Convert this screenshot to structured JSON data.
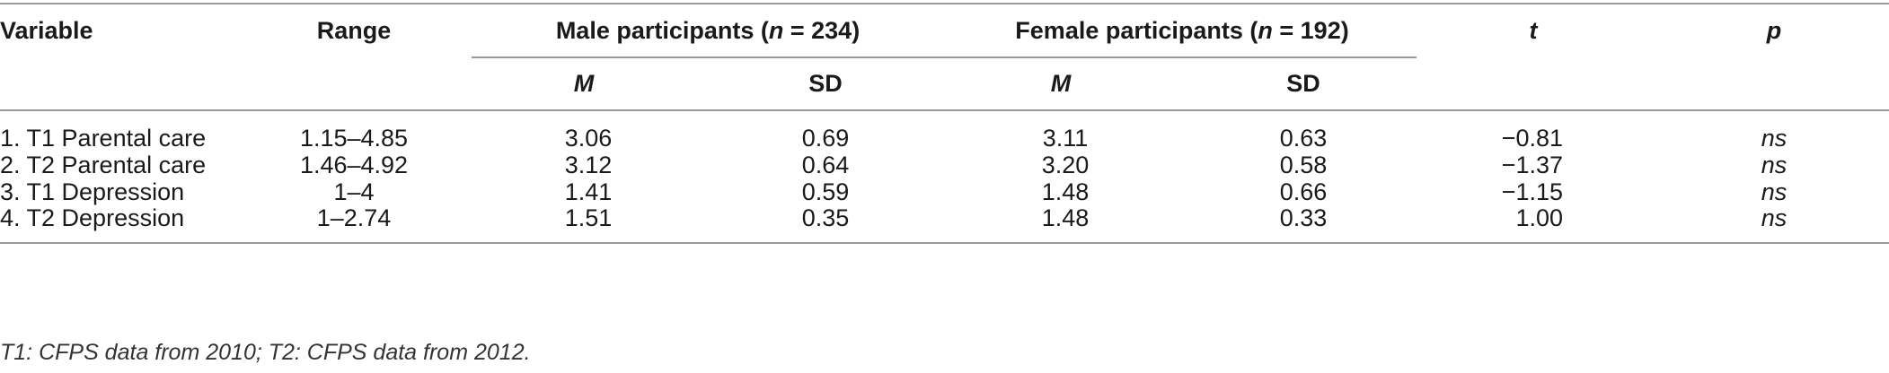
{
  "table": {
    "headers": {
      "variable": "Variable",
      "range": "Range",
      "male_group": {
        "prefix": "Male participants (",
        "n": "n",
        "suffix": " = 234)"
      },
      "female_group": {
        "prefix": "Female participants (",
        "n": "n",
        "suffix": " = 192)"
      },
      "t": "t",
      "p": "p",
      "male_m": "M",
      "male_sd": "SD",
      "female_m": "M",
      "female_sd": "SD"
    },
    "rows": [
      {
        "variable": "1. T1 Parental care",
        "range": "1.15–4.85",
        "male_m": "3.06",
        "male_sd": "0.69",
        "female_m": "3.11",
        "female_sd": "0.63",
        "t": "−0.81",
        "p": "ns"
      },
      {
        "variable": "2. T2 Parental care",
        "range": "1.46–4.92",
        "male_m": "3.12",
        "male_sd": "0.64",
        "female_m": "3.20",
        "female_sd": "0.58",
        "t": "−1.37",
        "p": "ns"
      },
      {
        "variable": "3. T1 Depression",
        "range": "1–4",
        "male_m": "1.41",
        "male_sd": "0.59",
        "female_m": "1.48",
        "female_sd": "0.66",
        "t": "−1.15",
        "p": "ns"
      },
      {
        "variable": "4. T2 Depression",
        "range": "1–2.74",
        "male_m": "1.51",
        "male_sd": "0.35",
        "female_m": "1.48",
        "female_sd": "0.33",
        "t": "1.00",
        "p": "ns"
      }
    ],
    "note": "T1: CFPS data from 2010; T2: CFPS data from 2012."
  }
}
